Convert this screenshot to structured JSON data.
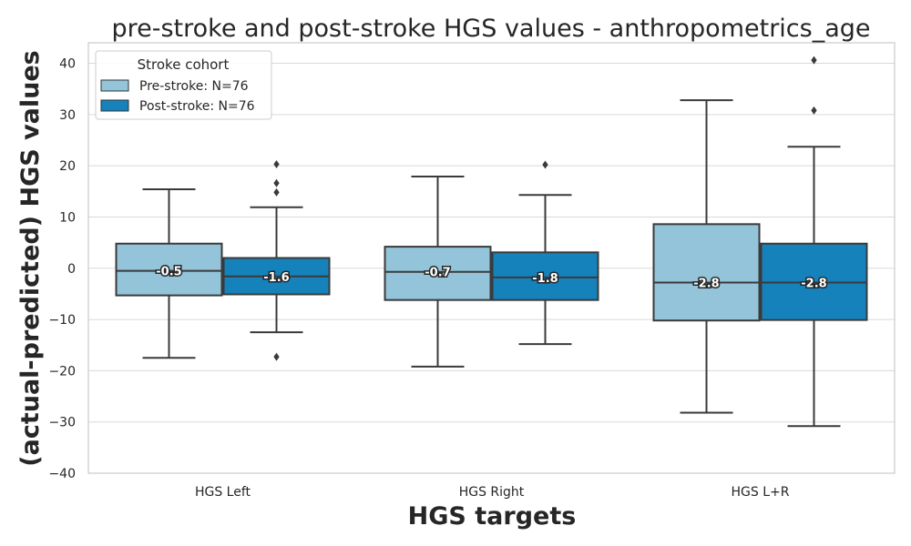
{
  "chart_data": {
    "type": "box",
    "title": "pre-stroke and post-stroke HGS values - anthropometrics_age",
    "xlabel": "HGS targets",
    "ylabel": "(actual-predicted) HGS values",
    "ylim": [
      -40,
      44
    ],
    "yticks": [
      -40,
      -30,
      -20,
      -10,
      0,
      10,
      20,
      30,
      40
    ],
    "grid": true,
    "legend": {
      "title": "Stroke cohort",
      "placement": "top-left",
      "entries": [
        "Pre-stroke: N=76",
        "Post-stroke: N=76"
      ]
    },
    "categories": [
      "HGS Left",
      "HGS Right",
      "HGS L+R"
    ],
    "series": [
      {
        "name": "Pre-stroke: N=76",
        "color": "#93c4d9",
        "boxes": [
          {
            "whislo": -17.5,
            "q1": -5.3,
            "median": -0.5,
            "q3": 4.8,
            "whishi": 15.4,
            "fliers": [],
            "label": "-0.5"
          },
          {
            "whislo": -19.2,
            "q1": -6.2,
            "median": -0.7,
            "q3": 4.2,
            "whishi": 17.9,
            "fliers": [],
            "label": "-0.7"
          },
          {
            "whislo": -28.2,
            "q1": -10.2,
            "median": -2.8,
            "q3": 8.6,
            "whishi": 32.8,
            "fliers": [],
            "label": "-2.8"
          }
        ]
      },
      {
        "name": "Post-stroke: N=76",
        "color": "#1582bb",
        "boxes": [
          {
            "whislo": -12.5,
            "q1": -5.1,
            "median": -1.6,
            "q3": 2.0,
            "whishi": 11.9,
            "fliers": [
              20.3,
              16.6,
              14.8,
              -17.3
            ],
            "label": "-1.6"
          },
          {
            "whislo": -14.8,
            "q1": -6.2,
            "median": -1.8,
            "q3": 3.1,
            "whishi": 14.3,
            "fliers": [
              20.2
            ],
            "label": "-1.8"
          },
          {
            "whislo": -30.8,
            "q1": -10.1,
            "median": -2.8,
            "q3": 4.8,
            "whishi": 23.7,
            "fliers": [
              40.6,
              30.8
            ],
            "label": "-2.8"
          }
        ]
      }
    ]
  }
}
